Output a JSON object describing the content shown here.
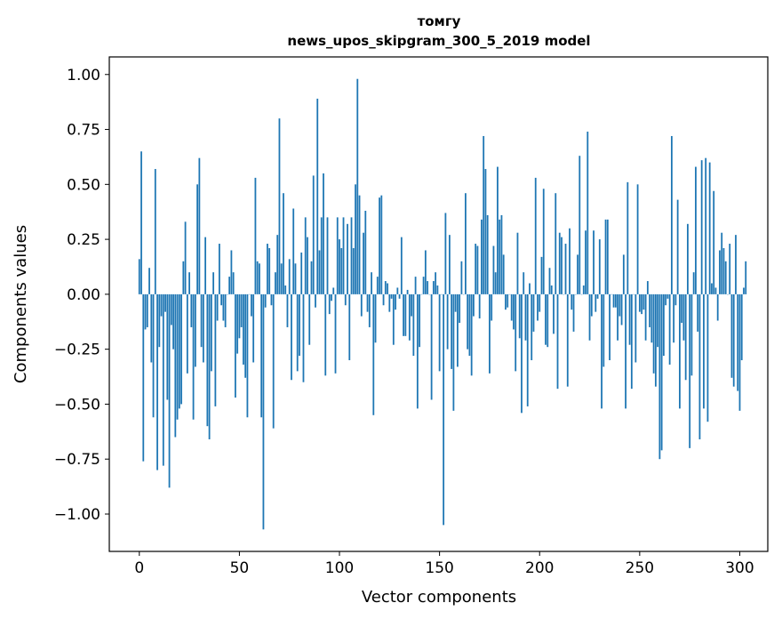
{
  "chart_data": {
    "type": "bar",
    "title_line1": "томгу",
    "title_line2": "news_upos_skipgram_300_5_2019 model",
    "xlabel": "Vector components",
    "ylabel": "Components values",
    "xlim": [
      -15,
      314
    ],
    "ylim": [
      -1.17,
      1.08
    ],
    "xticks": [
      0,
      50,
      100,
      150,
      200,
      250,
      300
    ],
    "xtick_labels": [
      "0",
      "50",
      "100",
      "150",
      "200",
      "250",
      "300"
    ],
    "yticks": [
      1.0,
      0.75,
      0.5,
      0.25,
      0.0,
      -0.25,
      -0.5,
      -0.75,
      -1.0
    ],
    "ytick_labels": [
      "1.00",
      "0.75",
      "0.50",
      "0.25",
      "0.00",
      "−0.25",
      "−0.50",
      "−0.75",
      "−1.00"
    ],
    "bar_color": "#1f77b4",
    "values": [
      0.16,
      0.65,
      -0.76,
      -0.16,
      -0.15,
      0.12,
      -0.31,
      -0.56,
      0.57,
      -0.8,
      -0.24,
      -0.1,
      -0.78,
      -0.08,
      -0.48,
      -0.88,
      -0.14,
      -0.25,
      -0.65,
      -0.57,
      -0.52,
      -0.5,
      0.15,
      0.33,
      -0.36,
      0.1,
      -0.15,
      -0.57,
      -0.33,
      0.5,
      0.62,
      -0.24,
      -0.31,
      0.26,
      -0.6,
      -0.66,
      -0.35,
      0.1,
      -0.51,
      -0.12,
      0.23,
      -0.05,
      -0.12,
      -0.15,
      0.0,
      0.08,
      0.2,
      0.1,
      -0.47,
      -0.27,
      -0.2,
      -0.15,
      -0.32,
      -0.38,
      -0.56,
      0.0,
      -0.1,
      -0.31,
      0.53,
      0.15,
      0.14,
      -0.56,
      -1.07,
      -0.06,
      0.23,
      0.21,
      -0.05,
      -0.61,
      0.1,
      0.27,
      0.8,
      0.14,
      0.46,
      0.04,
      -0.15,
      0.16,
      -0.39,
      0.39,
      0.14,
      -0.35,
      -0.28,
      0.19,
      -0.4,
      0.35,
      0.26,
      -0.23,
      0.15,
      0.54,
      -0.06,
      0.89,
      0.2,
      0.35,
      0.55,
      -0.37,
      0.35,
      -0.09,
      -0.03,
      0.03,
      -0.36,
      0.35,
      0.25,
      0.21,
      0.35,
      -0.05,
      0.32,
      -0.3,
      0.35,
      0.21,
      0.5,
      0.98,
      0.45,
      -0.1,
      0.28,
      0.38,
      -0.08,
      -0.15,
      0.1,
      -0.55,
      -0.22,
      0.08,
      0.44,
      0.45,
      -0.05,
      0.06,
      0.05,
      -0.08,
      -0.02,
      -0.23,
      -0.07,
      0.03,
      -0.02,
      0.26,
      -0.19,
      -0.19,
      0.02,
      -0.21,
      -0.1,
      -0.28,
      0.08,
      -0.52,
      -0.24,
      0.0,
      0.08,
      0.2,
      0.06,
      0.0,
      -0.48,
      0.06,
      0.1,
      0.04,
      -0.35,
      0.0,
      -1.05,
      0.37,
      -0.25,
      0.27,
      -0.34,
      -0.53,
      -0.08,
      -0.33,
      -0.13,
      0.15,
      0.0,
      0.46,
      -0.25,
      -0.28,
      -0.37,
      -0.1,
      0.23,
      0.22,
      -0.11,
      0.34,
      0.72,
      0.57,
      0.36,
      -0.36,
      -0.12,
      0.22,
      0.1,
      0.58,
      0.34,
      0.36,
      0.18,
      -0.07,
      -0.06,
      0.0,
      -0.12,
      -0.16,
      -0.35,
      0.28,
      -0.2,
      -0.54,
      0.1,
      -0.21,
      -0.51,
      0.05,
      -0.3,
      -0.17,
      0.53,
      -0.12,
      -0.08,
      0.17,
      0.48,
      -0.23,
      -0.24,
      0.12,
      0.04,
      -0.18,
      0.46,
      -0.43,
      0.28,
      0.26,
      0.0,
      0.23,
      -0.42,
      0.3,
      -0.07,
      -0.17,
      0.0,
      0.18,
      0.63,
      0.0,
      0.04,
      0.29,
      0.74,
      -0.21,
      -0.1,
      0.29,
      -0.08,
      -0.02,
      0.25,
      -0.52,
      -0.33,
      0.34,
      0.34,
      -0.3,
      0.0,
      -0.06,
      -0.06,
      -0.21,
      -0.1,
      -0.14,
      0.18,
      -0.52,
      0.51,
      -0.23,
      -0.43,
      0.0,
      -0.31,
      0.5,
      -0.08,
      -0.09,
      -0.07,
      -0.21,
      0.06,
      -0.15,
      -0.22,
      -0.36,
      -0.42,
      -0.24,
      -0.75,
      -0.71,
      -0.28,
      -0.05,
      -0.02,
      -0.32,
      0.72,
      -0.22,
      -0.05,
      0.43,
      -0.52,
      -0.13,
      -0.21,
      -0.39,
      0.32,
      -0.7,
      -0.37,
      0.1,
      0.58,
      -0.17,
      -0.66,
      0.61,
      -0.52,
      0.62,
      -0.58,
      0.6,
      0.05,
      0.47,
      0.03,
      -0.12,
      0.2,
      0.28,
      0.21,
      0.15,
      0.0,
      0.23,
      -0.38,
      -0.42,
      0.27,
      -0.44,
      -0.53,
      -0.3,
      0.03,
      0.15
    ]
  }
}
